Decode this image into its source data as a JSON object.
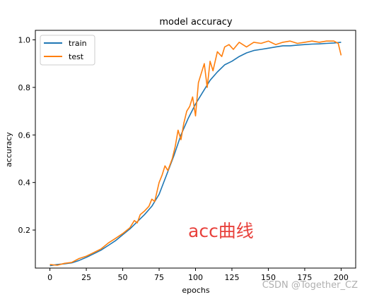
{
  "chart_data": {
    "type": "line",
    "title": "model accuracy",
    "xlabel": "epochs",
    "ylabel": "accuracy",
    "xlim": [
      -10,
      210
    ],
    "ylim": [
      0.04,
      1.04
    ],
    "xticks": [
      0,
      25,
      50,
      75,
      100,
      125,
      150,
      175,
      200
    ],
    "xtick_labels": [
      "0",
      "25",
      "50",
      "75",
      "100",
      "125",
      "150",
      "175",
      "200"
    ],
    "yticks": [
      0.2,
      0.4,
      0.6,
      0.8,
      1.0
    ],
    "ytick_labels": [
      "0.2",
      "0.4",
      "0.6",
      "0.8",
      "1.0"
    ],
    "grid": false,
    "legend_position": "top-left",
    "series": [
      {
        "name": "train",
        "color": "#1f77b4",
        "x": [
          0,
          5,
          10,
          15,
          20,
          25,
          30,
          35,
          40,
          45,
          50,
          55,
          60,
          65,
          70,
          75,
          80,
          85,
          90,
          95,
          100,
          105,
          110,
          115,
          120,
          125,
          130,
          135,
          140,
          145,
          150,
          155,
          160,
          165,
          170,
          175,
          180,
          185,
          190,
          195,
          200
        ],
        "y": [
          0.05,
          0.055,
          0.058,
          0.062,
          0.072,
          0.085,
          0.1,
          0.115,
          0.135,
          0.155,
          0.18,
          0.205,
          0.235,
          0.265,
          0.3,
          0.35,
          0.43,
          0.51,
          0.6,
          0.67,
          0.73,
          0.78,
          0.83,
          0.865,
          0.895,
          0.91,
          0.93,
          0.945,
          0.955,
          0.96,
          0.965,
          0.97,
          0.975,
          0.975,
          0.978,
          0.98,
          0.982,
          0.983,
          0.985,
          0.987,
          0.99
        ]
      },
      {
        "name": "test",
        "color": "#ff7f0e",
        "x": [
          0,
          5,
          10,
          15,
          20,
          25,
          30,
          35,
          40,
          45,
          50,
          55,
          58,
          60,
          62,
          65,
          68,
          70,
          72,
          75,
          77,
          79,
          81,
          84,
          86,
          88,
          90,
          92,
          94,
          96,
          98,
          100,
          102,
          104,
          106,
          108,
          110,
          112,
          115,
          118,
          120,
          123,
          126,
          130,
          135,
          140,
          145,
          150,
          155,
          160,
          165,
          170,
          175,
          180,
          185,
          190,
          195,
          198,
          200
        ],
        "y": [
          0.055,
          0.052,
          0.06,
          0.064,
          0.08,
          0.09,
          0.105,
          0.12,
          0.145,
          0.165,
          0.185,
          0.21,
          0.24,
          0.23,
          0.265,
          0.28,
          0.3,
          0.33,
          0.32,
          0.4,
          0.43,
          0.47,
          0.45,
          0.5,
          0.55,
          0.62,
          0.58,
          0.65,
          0.7,
          0.72,
          0.76,
          0.68,
          0.82,
          0.86,
          0.9,
          0.8,
          0.91,
          0.87,
          0.95,
          0.93,
          0.97,
          0.98,
          0.96,
          0.99,
          0.97,
          0.99,
          0.985,
          0.995,
          0.98,
          0.99,
          0.995,
          0.985,
          0.99,
          0.995,
          0.99,
          0.995,
          0.995,
          0.985,
          0.935
        ]
      }
    ],
    "annotations": [
      "acc曲线"
    ]
  },
  "watermark": "CSDN @Together_CZ"
}
